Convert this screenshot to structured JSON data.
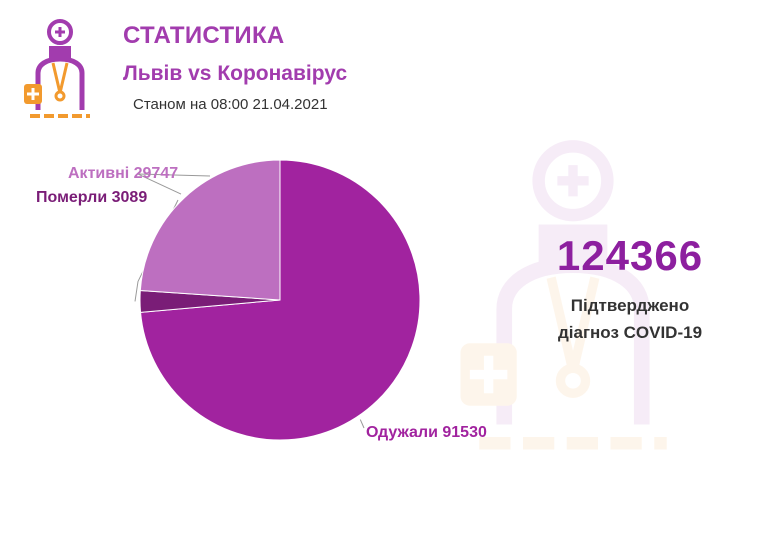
{
  "header": {
    "title": "СТАТИСТИКА",
    "subtitle": "Львів vs Коронавірус",
    "as_of": "Станом на 08:00 21.04.2021"
  },
  "summary": {
    "total": "124366",
    "label_line1": "Підтверджено",
    "label_line2": "діагноз COVID-19"
  },
  "colors": {
    "accent": "#a23cae",
    "recovered": "#a1239f",
    "died": "#7a1d77",
    "active": "#bd6fc0"
  },
  "chart_data": {
    "type": "pie",
    "title": "",
    "slices": [
      {
        "label": "Одужали 91530",
        "value": 91530,
        "color": "#a1239f"
      },
      {
        "label": "Померли 3089",
        "value": 3089,
        "color": "#7a1d77"
      },
      {
        "label": "Активні 29747",
        "value": 29747,
        "color": "#bd6fc0"
      }
    ]
  }
}
